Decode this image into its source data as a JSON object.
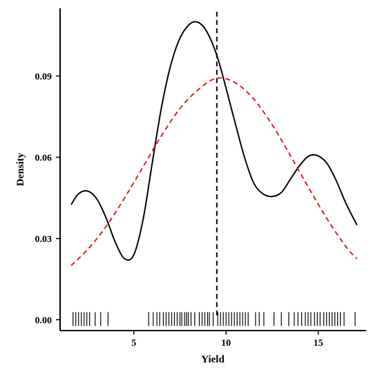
{
  "chart_data": {
    "type": "line",
    "title": "",
    "xlabel": "Yield",
    "ylabel": "Density",
    "xlim": [
      1.0,
      17.6
    ],
    "ylim": [
      -0.004,
      0.115
    ],
    "x_ticks": [
      5,
      10,
      15
    ],
    "x_tick_labels": [
      "5",
      "10",
      "15"
    ],
    "y_ticks": [
      0.0,
      0.03,
      0.06,
      0.09
    ],
    "y_tick_labels": [
      "0.00",
      "0.03",
      "0.06",
      "0.09"
    ],
    "grid": false,
    "legend": "none",
    "vline": {
      "x": 9.5,
      "style": "dashed",
      "color": "#000000"
    },
    "series": [
      {
        "style": "solid",
        "color": "#000000",
        "x": [
          1.6,
          2.0,
          2.5,
          3.0,
          3.5,
          4.0,
          4.5,
          5.0,
          5.5,
          6.0,
          6.5,
          7.0,
          7.5,
          8.0,
          8.4,
          8.8,
          9.2,
          9.6,
          10.0,
          10.5,
          11.0,
          11.5,
          12.0,
          12.5,
          13.0,
          13.5,
          14.0,
          14.5,
          15.0,
          15.5,
          16.0,
          16.5,
          17.1
        ],
        "y": [
          0.0425,
          0.0465,
          0.0475,
          0.0445,
          0.0375,
          0.0285,
          0.0225,
          0.024,
          0.037,
          0.058,
          0.0785,
          0.094,
          0.104,
          0.109,
          0.11,
          0.108,
          0.103,
          0.0955,
          0.0855,
          0.0725,
          0.06,
          0.0505,
          0.0465,
          0.0455,
          0.047,
          0.052,
          0.057,
          0.0605,
          0.0605,
          0.0575,
          0.051,
          0.043,
          0.035
        ]
      },
      {
        "style": "dashed",
        "color": "#e31a1c",
        "x": [
          1.6,
          2.5,
          3.5,
          4.5,
          5.5,
          6.5,
          7.5,
          8.5,
          9.5,
          10.5,
          11.5,
          12.5,
          13.5,
          14.5,
          15.5,
          16.5,
          17.1
        ],
        "y": [
          0.02,
          0.026,
          0.0345,
          0.045,
          0.0565,
          0.068,
          0.078,
          0.085,
          0.0892,
          0.0875,
          0.0815,
          0.072,
          0.0605,
          0.0485,
          0.037,
          0.027,
          0.0225
        ]
      }
    ],
    "rug": [
      1.7,
      1.85,
      2.0,
      2.15,
      2.3,
      2.45,
      2.6,
      2.9,
      3.2,
      3.6,
      5.8,
      6.05,
      6.25,
      6.4,
      6.6,
      6.75,
      6.9,
      7.05,
      7.2,
      7.35,
      7.5,
      7.6,
      7.75,
      7.85,
      7.95,
      8.1,
      8.3,
      8.55,
      8.7,
      8.85,
      9.0,
      9.1,
      9.3,
      9.55,
      9.7,
      9.85,
      10.0,
      10.15,
      10.3,
      10.45,
      10.6,
      10.75,
      10.9,
      11.05,
      11.2,
      11.6,
      11.8,
      12.05,
      12.6,
      13.0,
      13.4,
      13.7,
      13.9,
      14.1,
      14.3,
      14.45,
      14.6,
      14.8,
      14.95,
      15.1,
      15.3,
      15.45,
      15.6,
      15.75,
      15.9,
      16.05,
      16.2,
      16.4,
      17.0
    ]
  }
}
